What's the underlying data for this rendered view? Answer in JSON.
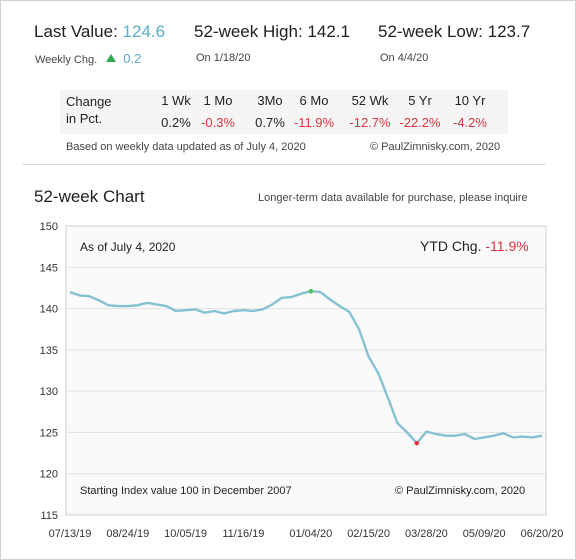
{
  "header": {
    "last_value_label": "Last Value:",
    "last_value": "124.6",
    "high_label": "52-week High:",
    "high_value": "142.1",
    "low_label": "52-week Low:",
    "low_value": "123.7",
    "weekly_chg_label": "Weekly Chg.",
    "weekly_chg_value": "0.2",
    "weekly_chg_icon": "up-triangle-icon",
    "high_date": "On 1/18/20",
    "low_date": "On 4/4/20"
  },
  "pct_table": {
    "row_label_1": "Change",
    "row_label_2": "in Pct.",
    "columns": [
      "1 Wk",
      "1 Mo",
      "3Mo",
      "6 Mo",
      "52 Wk",
      "5 Yr",
      "10 Yr"
    ],
    "values": [
      "0.2%",
      "-0.3%",
      "0.7%",
      "-11.9%",
      "-12.7%",
      "-22.2%",
      "-4.2%"
    ]
  },
  "footnote": {
    "based_on": "Based on weekly data updated as of July 4, 2020",
    "copyright": "© PaulZimnisky.com, 2020"
  },
  "chart_header": {
    "title": "52-week Chart",
    "note": "Longer-term data available for purchase, please inquire"
  },
  "chart_annotations": {
    "as_of": "As of July 4, 2020",
    "ytd_label": "YTD Chg.",
    "ytd_value": "-11.9%",
    "starting_index": "Starting Index value 100 in December 2007",
    "copyright": "© PaulZimnisky.com, 2020"
  },
  "colors": {
    "accent": "#5aaec9",
    "line": "#84c2d3",
    "negative": "#d9343f",
    "positive": "#2fa84f",
    "high_marker": "#37c94a",
    "low_marker": "#d9343f",
    "grid": "#e2e2e2",
    "plot_bg": "#fafafa"
  },
  "chart_data": {
    "type": "line",
    "ylim": [
      115,
      150
    ],
    "yticks": [
      115,
      120,
      125,
      130,
      135,
      140,
      145,
      150
    ],
    "xtick_labels": [
      "07/13/19",
      "08/24/19",
      "10/05/19",
      "11/16/19",
      "01/04/20",
      "02/15/20",
      "03/28/20",
      "05/09/20",
      "06/20/20"
    ],
    "xtick_index": [
      0,
      6,
      12,
      18,
      25,
      31,
      37,
      43,
      49
    ],
    "grid": true,
    "series": [
      {
        "values": [
          142.0,
          141.6,
          141.5,
          141.0,
          140.4,
          140.3,
          140.3,
          140.4,
          140.7,
          140.5,
          140.3,
          139.7,
          139.8,
          139.9,
          139.5,
          139.7,
          139.4,
          139.7,
          139.8,
          139.7,
          139.9,
          140.5,
          141.3,
          141.4,
          141.8,
          142.1,
          142.0,
          141.1,
          140.3,
          139.6,
          137.5,
          134.2,
          132.2,
          129.2,
          126.1,
          125.0,
          123.7,
          125.1,
          124.8,
          124.6,
          124.6,
          124.8,
          124.2,
          124.4,
          124.6,
          124.9,
          124.4,
          124.5,
          124.4,
          124.6
        ]
      }
    ],
    "high": {
      "index": 25,
      "value": 142.1
    },
    "low": {
      "index": 36,
      "value": 123.7
    }
  }
}
